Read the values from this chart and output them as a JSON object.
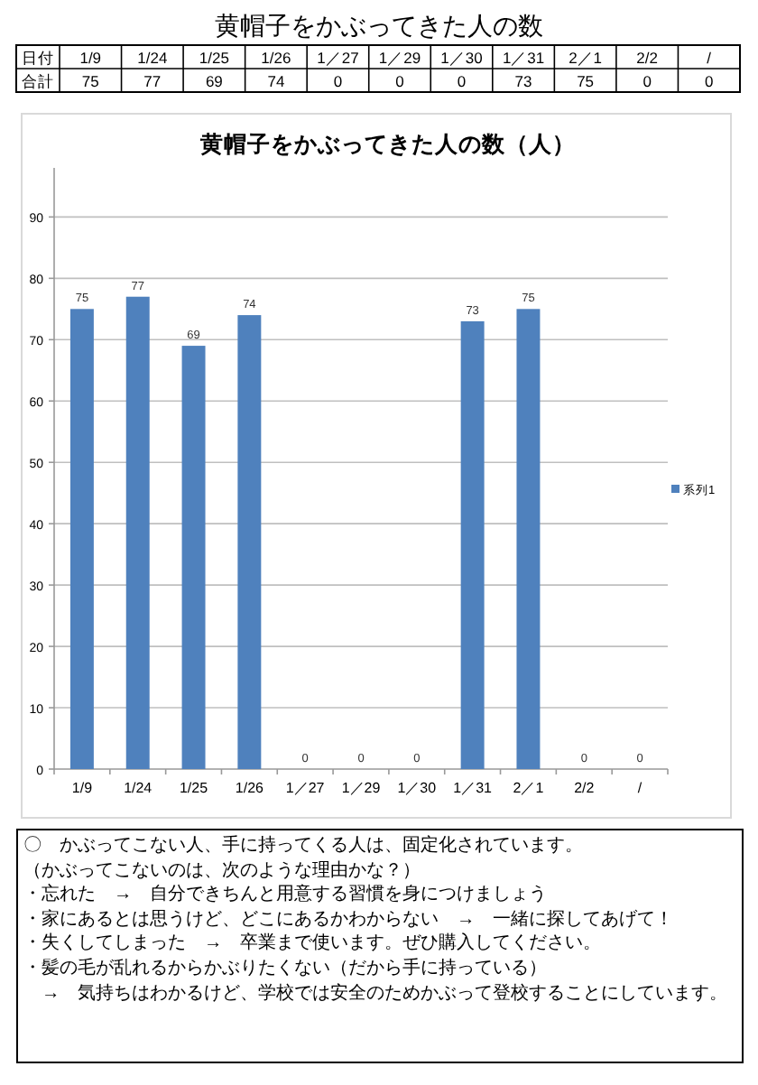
{
  "chart_data": [
    {
      "type": "other",
      "title": "黄帽子をかぶってきた人の数",
      "categories": [
        "1/9",
        "1/24",
        "1/25",
        "1/26",
        "1／27",
        "1／29",
        "1／30",
        "1／31",
        "2／1",
        "2/2",
        "/"
      ],
      "values": [
        75,
        77,
        69,
        74,
        0,
        0,
        0,
        73,
        75,
        0,
        0
      ],
      "data_labels": true,
      "annotations": [
        "日付",
        "合計"
      ]
    },
    {
      "type": "bar",
      "title": "黄帽子をかぶってきた人の数（人）",
      "categories": [
        "1/9",
        "1/24",
        "1/25",
        "1/26",
        "1／27",
        "1／29",
        "1／30",
        "1／31",
        "2／1",
        "2/2",
        "/"
      ],
      "series": [
        {
          "name": "系列1",
          "color": "#4f81bd",
          "values": [
            75,
            77,
            69,
            74,
            0,
            0,
            0,
            73,
            75,
            0,
            0
          ]
        }
      ],
      "ylim": [
        0,
        98
      ],
      "yticks": [
        0,
        10,
        20,
        30,
        40,
        50,
        60,
        70,
        80,
        90
      ],
      "grid": "y",
      "legend": "right",
      "data_labels": true,
      "annotations": [
        "〇　かぶってこない人、手に持ってくる人は、固定化されています。",
        "（かぶってこないのは、次のような理由かな？）",
        "・忘れた　→　自分できちんと用意する習慣を身につけましょう",
        "・家にあるとは思うけど、どこにあるかわからない　→　一緒に探してあげて！",
        "・失くしてしまった　→　卒業まで使います。ぜひ購入してください。",
        "・髪の毛が乱れるからかぶりたくない（だから手に持っている）",
        "　→　気持ちはわかるけど、学校では安全のためかぶって登校することにしています。"
      ]
    }
  ]
}
